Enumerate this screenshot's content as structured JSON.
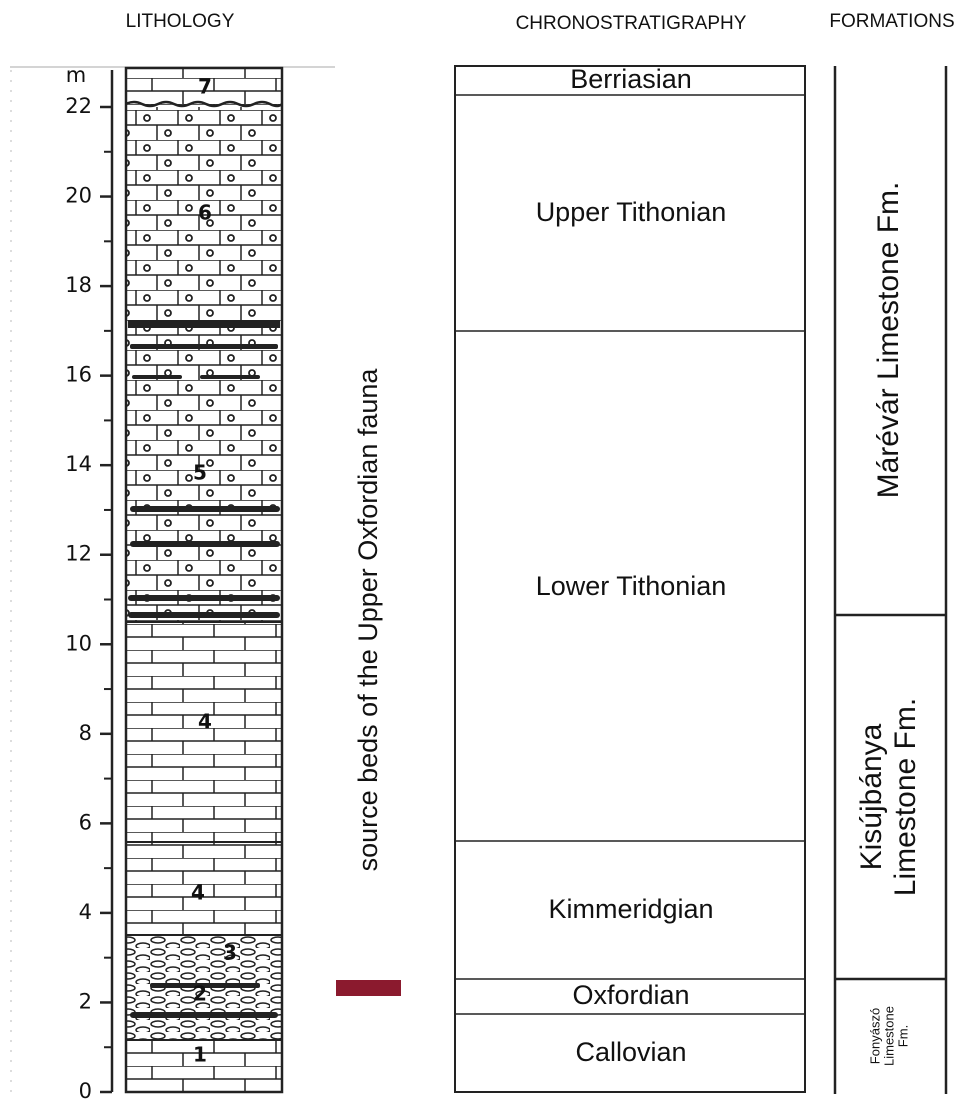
{
  "headers": {
    "lithology": "LITHOLOGY",
    "chronostratigraphy": "CHRONOSTRATIGRAPHY",
    "formations": "FORMATIONS"
  },
  "depth_axis": {
    "unit": "m",
    "ticks": [
      0,
      2,
      4,
      6,
      8,
      10,
      12,
      14,
      16,
      18,
      20,
      22
    ]
  },
  "bed_labels": [
    "1",
    "2",
    "3",
    "4",
    "4",
    "5",
    "6",
    "7"
  ],
  "annotation": "source beds of the Upper Oxfordian fauna",
  "stages": [
    "Berriasian",
    "Upper Tithonian",
    "Lower Tithonian",
    "Kimmeridgian",
    "Oxfordian",
    "Callovian"
  ],
  "formations": [
    {
      "lines": [
        "Márévár Limestone Fm."
      ]
    },
    {
      "lines": [
        "Kisújbánya",
        "Limestone Fm."
      ]
    },
    {
      "lines": [
        "Fonyászó",
        "Limestone",
        "Fm."
      ]
    }
  ]
}
